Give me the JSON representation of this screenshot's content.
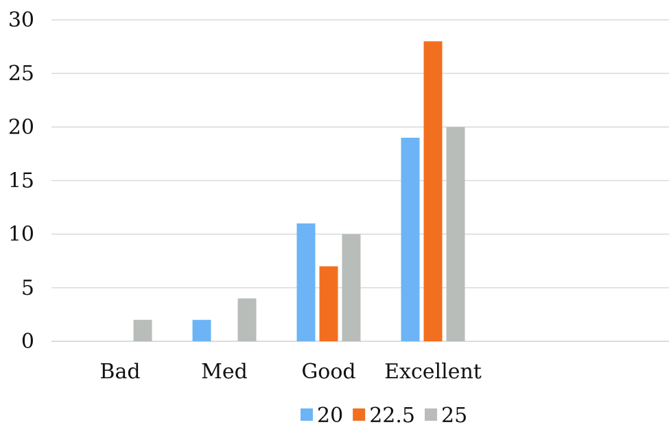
{
  "chart_data": {
    "type": "bar",
    "title": "",
    "xlabel": "",
    "ylabel": "",
    "categories": [
      "Bad",
      "Med",
      "Good",
      "Excellent"
    ],
    "series": [
      {
        "name": "20",
        "color": "#6cb4f5",
        "values": [
          0,
          2,
          11,
          19
        ]
      },
      {
        "name": "22.5",
        "color": "#f26f1f",
        "values": [
          0,
          0,
          7,
          28
        ]
      },
      {
        "name": "25",
        "color": "#b8bdb9",
        "values": [
          2,
          4,
          10,
          20
        ]
      }
    ],
    "ylim": [
      0,
      30
    ],
    "yticks": [
      0,
      5,
      10,
      15,
      20,
      25,
      30
    ],
    "grid": true,
    "legend_position": "bottom-center"
  }
}
